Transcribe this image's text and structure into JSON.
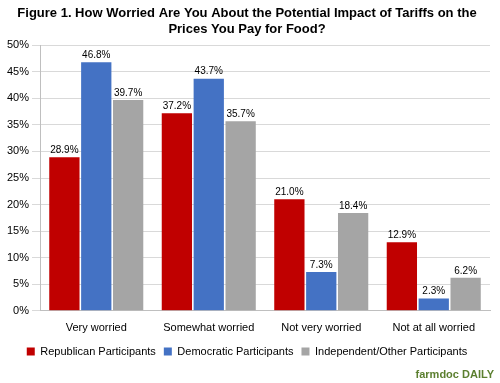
{
  "chart_data": {
    "type": "bar",
    "title": "Figure 1. How Worried Are You About the Potential Impact of Tariffs on the Prices You Pay for Food?",
    "categories": [
      "Very worried",
      "Somewhat worried",
      "Not very worried",
      "Not at all worried"
    ],
    "series": [
      {
        "name": "Republican Participants",
        "color": "#c00000",
        "values": [
          28.9,
          37.2,
          21.0,
          12.9
        ],
        "value_labels": [
          "28.9%",
          "37.2%",
          "21.0%",
          "12.9%"
        ]
      },
      {
        "name": "Democratic Participants",
        "color": "#4472c4",
        "values": [
          46.8,
          43.7,
          7.3,
          2.3
        ],
        "value_labels": [
          "46.8%",
          "43.7%",
          "7.3%",
          "2.3%"
        ]
      },
      {
        "name": "Independent/Other Participants",
        "color": "#a5a5a5",
        "values": [
          39.7,
          35.7,
          18.4,
          6.2
        ],
        "value_labels": [
          "39.7%",
          "35.7%",
          "18.4%",
          "6.2%"
        ]
      }
    ],
    "ylim": [
      0,
      50
    ],
    "yticks": [
      {
        "value": 0,
        "label": "0%"
      },
      {
        "value": 5,
        "label": "5%"
      },
      {
        "value": 10,
        "label": "10%"
      },
      {
        "value": 15,
        "label": "15%"
      },
      {
        "value": 20,
        "label": "20%"
      },
      {
        "value": 25,
        "label": "25%"
      },
      {
        "value": 30,
        "label": "30%"
      },
      {
        "value": 35,
        "label": "35%"
      },
      {
        "value": 40,
        "label": "40%"
      },
      {
        "value": 45,
        "label": "45%"
      },
      {
        "value": 50,
        "label": "50%"
      }
    ],
    "grid": true,
    "legend": "bottom",
    "data_labels": true,
    "annotations": [
      "farmdoc DAILY"
    ]
  }
}
